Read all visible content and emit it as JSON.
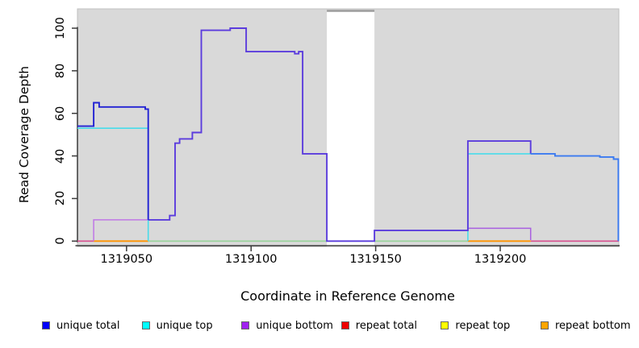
{
  "axes": {
    "y_label": "Read Coverage Depth",
    "x_label": "Coordinate in Reference Genome",
    "y_ticks": [
      0,
      20,
      40,
      60,
      80,
      100
    ],
    "x_ticks": [
      1319050,
      1319100,
      1319150,
      1319200
    ]
  },
  "legend": [
    {
      "label": "unique total",
      "color": "#0000ff"
    },
    {
      "label": "unique top",
      "color": "#00ffff"
    },
    {
      "label": "unique bottom",
      "color": "#a020f0"
    },
    {
      "label": "repeat total",
      "color": "#ee0000"
    },
    {
      "label": "repeat top",
      "color": "#ffff00"
    },
    {
      "label": "repeat bottom",
      "color": "#ffa500"
    }
  ],
  "chart_data": {
    "type": "line",
    "subtype": "step-coverage",
    "title": "",
    "xlabel": "Coordinate in Reference Genome",
    "ylabel": "Read Coverage Depth",
    "xlim": [
      1319030.3,
      1319247.6
    ],
    "ylim": [
      0,
      109
    ],
    "grid": false,
    "plot_background": "#d9d9d9",
    "coverage_gap_region": {
      "x_start": 1319130.4,
      "x_end": 1319149.5,
      "fill": "#ffffff",
      "top_edge_color": "#9c9c9c"
    },
    "series": [
      {
        "name": "unique total",
        "color": "#0000ff",
        "steps": [
          [
            1319030,
            54
          ],
          [
            1319037,
            65
          ],
          [
            1319039,
            63
          ],
          [
            1319057,
            62
          ],
          [
            1319059,
            10
          ],
          [
            1319067,
            12
          ],
          [
            1319070,
            46
          ],
          [
            1319071,
            48
          ],
          [
            1319076,
            51
          ],
          [
            1319080,
            99
          ],
          [
            1319092,
            100
          ],
          [
            1319098,
            89
          ],
          [
            1319117,
            88
          ],
          [
            1319119,
            89
          ],
          [
            1319121,
            41
          ],
          [
            1319130,
            0
          ],
          [
            1319150,
            5
          ],
          [
            1319187,
            47
          ],
          [
            1319212,
            41
          ],
          [
            1319222,
            40
          ],
          [
            1319240,
            39
          ],
          [
            1319246,
            38
          ],
          [
            1319248,
            0
          ]
        ]
      },
      {
        "name": "unique top",
        "color": "#00ffff",
        "steps": [
          [
            1319030,
            53
          ],
          [
            1319059,
            0
          ],
          [
            1319187,
            41
          ],
          [
            1319212,
            41
          ],
          [
            1319222,
            40
          ],
          [
            1319240,
            39
          ],
          [
            1319246,
            38
          ],
          [
            1319248,
            0
          ]
        ]
      },
      {
        "name": "unique bottom",
        "color": "#a020f0",
        "steps": [
          [
            1319030,
            0
          ],
          [
            1319037,
            10
          ],
          [
            1319059,
            10
          ],
          [
            1319067,
            12
          ],
          [
            1319070,
            46
          ],
          [
            1319071,
            48
          ],
          [
            1319076,
            51
          ],
          [
            1319080,
            99
          ],
          [
            1319092,
            100
          ],
          [
            1319098,
            89
          ],
          [
            1319117,
            88
          ],
          [
            1319119,
            89
          ],
          [
            1319121,
            41
          ],
          [
            1319130,
            0
          ],
          [
            1319150,
            5
          ],
          [
            1319187,
            6
          ],
          [
            1319212,
            0
          ]
        ]
      },
      {
        "name": "repeat total",
        "color": "#ee0000",
        "steps": [
          [
            1319030,
            0
          ],
          [
            1319248,
            0
          ]
        ]
      },
      {
        "name": "repeat top",
        "color": "#ffff00",
        "steps": [
          [
            1319030,
            0
          ],
          [
            1319248,
            0
          ]
        ]
      },
      {
        "name": "repeat bottom",
        "color": "#ffa500",
        "steps": [
          [
            1319030,
            0
          ],
          [
            1319248,
            0
          ]
        ]
      }
    ],
    "render_series": [
      {
        "name": "zero-line-green-blend",
        "color": "#98d39a",
        "width": 1.6,
        "pts": [
          [
            1319058.7,
            0
          ],
          [
            1319187,
            0
          ]
        ]
      },
      {
        "name": "zero-line-pink-left",
        "color": "#d8508e",
        "width": 1.6,
        "pts": [
          [
            1319030.3,
            0
          ],
          [
            1319036.8,
            0
          ]
        ]
      },
      {
        "name": "zero-line-pink-right",
        "color": "#d8508e",
        "width": 1.6,
        "pts": [
          [
            1319212.2,
            0
          ],
          [
            1319247.6,
            0
          ]
        ]
      },
      {
        "name": "zero-line-orange-left",
        "color": "#ff9300",
        "width": 1.8,
        "pts": [
          [
            1319036.8,
            0
          ],
          [
            1319058.7,
            0
          ]
        ]
      },
      {
        "name": "zero-line-orange-right",
        "color": "#ff9300",
        "width": 1.8,
        "pts": [
          [
            1319187,
            0
          ],
          [
            1319212.2,
            0
          ]
        ]
      },
      {
        "name": "unique-bottom-left",
        "color": "#c077e6",
        "width": 1.5,
        "pts": [
          [
            1319036.8,
            0
          ],
          [
            1319036.8,
            10
          ],
          [
            1319059.2,
            10
          ]
        ]
      },
      {
        "name": "unique-bottom-right",
        "color": "#a95fe0",
        "width": 1.5,
        "pts": [
          [
            1319187,
            6
          ],
          [
            1319212.2,
            6
          ],
          [
            1319212.2,
            0.5
          ]
        ]
      },
      {
        "name": "unique-top-left",
        "color": "#49dcea",
        "width": 1.6,
        "pts": [
          [
            1319030.3,
            53
          ],
          [
            1319058.7,
            53
          ],
          [
            1319058.7,
            0
          ]
        ]
      },
      {
        "name": "unique-top-right",
        "color": "#49dcea",
        "width": 1.6,
        "pts": [
          [
            1319187,
            0
          ],
          [
            1319187,
            41
          ],
          [
            1319212.2,
            41
          ]
        ]
      },
      {
        "name": "unique-total-bottom-overlap",
        "color": "#5b3cdd",
        "width": 1.9,
        "pts": [
          [
            1319058.7,
            10
          ],
          [
            1319067.3,
            10
          ],
          [
            1319067.3,
            12
          ],
          [
            1319069.5,
            12
          ],
          [
            1319069.5,
            46
          ],
          [
            1319071.3,
            46
          ],
          [
            1319071.3,
            48
          ],
          [
            1319076.4,
            48
          ],
          [
            1319076.4,
            51
          ],
          [
            1319080,
            51
          ],
          [
            1319080,
            99
          ],
          [
            1319091.6,
            99
          ],
          [
            1319091.6,
            100
          ],
          [
            1319098,
            100
          ],
          [
            1319098,
            89
          ],
          [
            1319117.5,
            89
          ],
          [
            1319117.5,
            88
          ],
          [
            1319119.1,
            88
          ],
          [
            1319119.1,
            89
          ],
          [
            1319120.7,
            89
          ],
          [
            1319120.7,
            41
          ],
          [
            1319130.4,
            41
          ],
          [
            1319130.4,
            0
          ],
          [
            1319149.5,
            0
          ],
          [
            1319149.5,
            5
          ],
          [
            1319187,
            5
          ],
          [
            1319187,
            47
          ],
          [
            1319212.2,
            47
          ],
          [
            1319212.2,
            41
          ]
        ]
      },
      {
        "name": "unique-total-left",
        "color": "#2222d4",
        "width": 1.9,
        "pts": [
          [
            1319030.3,
            54
          ],
          [
            1319036.8,
            54
          ],
          [
            1319036.8,
            65
          ],
          [
            1319039,
            65
          ],
          [
            1319039,
            63
          ],
          [
            1319057.5,
            63
          ],
          [
            1319057.5,
            62
          ],
          [
            1319058.7,
            62
          ],
          [
            1319058.7,
            10
          ]
        ]
      },
      {
        "name": "unique-total-top-overlap-tail",
        "color": "#3b7af0",
        "width": 1.9,
        "pts": [
          [
            1319212.2,
            41
          ],
          [
            1319222,
            41
          ],
          [
            1319222,
            40
          ],
          [
            1319240,
            40
          ],
          [
            1319240,
            39.5
          ],
          [
            1319245.5,
            39.5
          ],
          [
            1319245.5,
            38.5
          ],
          [
            1319247.4,
            38.5
          ],
          [
            1319247.4,
            0
          ]
        ]
      }
    ]
  }
}
